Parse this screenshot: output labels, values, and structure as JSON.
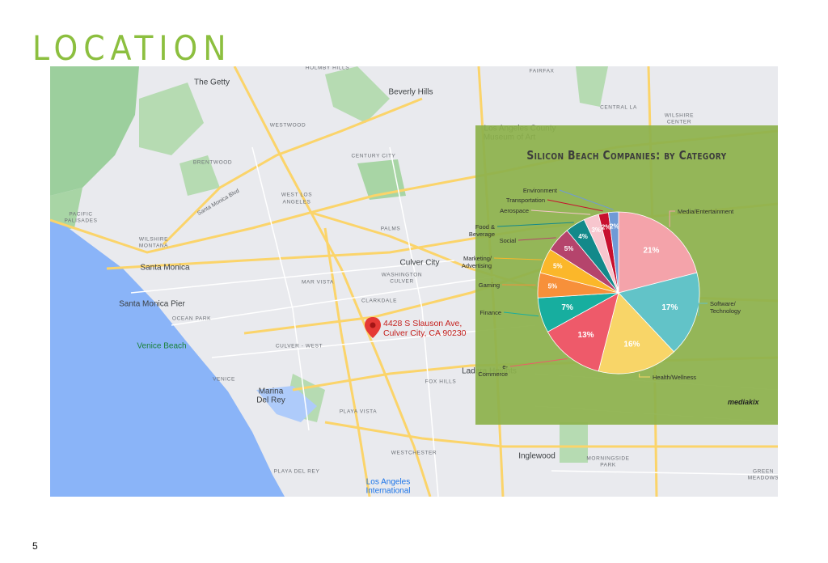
{
  "header": {
    "title": "LOCATION"
  },
  "map": {
    "labels": [
      "HOLMBY HILLS",
      "The Getty",
      "Beverly Hills",
      "FAIRFAX",
      "WESTWOOD",
      "CENTRAL LA",
      "WILSHIRE",
      "CENTER",
      "Los Angeles County",
      "Museum of Art",
      "BRENTWOOD",
      "CENTURY CITY",
      "WEST LOS",
      "ANGELES",
      "PACIFIC",
      "PALISADES",
      "WILSHIRE",
      "MONTANA",
      "Santa Monica",
      "Santa Monica Pier",
      "Santa Monica Blvd",
      "PALMS",
      "Culver City",
      "WASHINGTON",
      "CULVER",
      "MAR VISTA",
      "OCEAN PARK",
      "CLARKDALE",
      "Venice Beach",
      "CULVER - WEST",
      "VENICE",
      "Marina",
      "Del Rey",
      "FOX HILLS",
      "Ladera Heights",
      "PLAYA VISTA",
      "WESTCHESTER",
      "Inglewood",
      "MORNINGSIDE",
      "PARK",
      "PLAYA DEL REY",
      "Los Angeles",
      "International",
      "GREEN",
      "MEADOWS"
    ],
    "pin": {
      "lines": [
        "4428 S Slauson Ave,",
        "Culver City, CA 90230"
      ]
    }
  },
  "chart_data": {
    "type": "pie",
    "title": "Silicon Beach Companies: by Category",
    "categories": [
      "Media/Entertainment",
      "Software/ Technology",
      "Health/Wellness",
      "e-Commerce",
      "Finance",
      "Gaming",
      "Marketing/ Advertising",
      "Social",
      "Food & Beverage",
      "Aerospace",
      "Transportation",
      "Environment"
    ],
    "values": [
      21,
      17,
      16,
      13,
      7,
      5,
      5,
      5,
      4,
      3,
      2,
      2
    ],
    "value_labels": [
      "21%",
      "17%",
      "16%",
      "13%",
      "7%",
      "5%",
      "5%",
      "5%",
      "4%",
      "3%",
      "2%",
      "2%"
    ],
    "colors": [
      "#f4a3aa",
      "#62c3c8",
      "#f8d568",
      "#ee5a6a",
      "#17ae9f",
      "#f7903a",
      "#fbb72a",
      "#b5446c",
      "#13898a",
      "#f7c6ce",
      "#c8102e",
      "#6f9ad6"
    ],
    "logo": "mediakix"
  },
  "page_number": "5"
}
